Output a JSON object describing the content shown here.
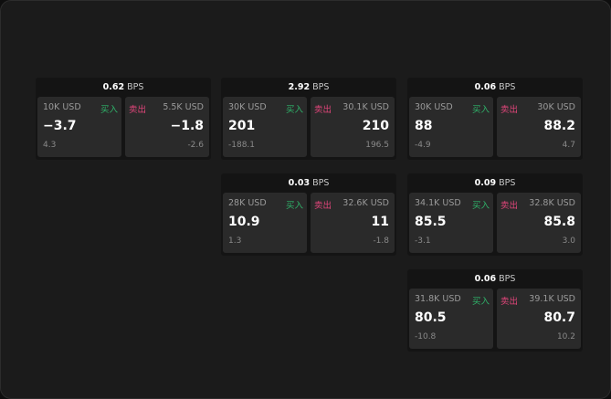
{
  "unit": "BPS",
  "buy_label": "买入",
  "sell_label": "卖出",
  "colors": {
    "buy": "#2fb36a",
    "sell": "#e0457a",
    "background": "#1b1b1b"
  },
  "cards": [
    {
      "spread": "0.62",
      "buy": {
        "size": "10K USD",
        "price": "−3.7",
        "change": "4.3"
      },
      "sell": {
        "size": "5.5K USD",
        "price": "−1.8",
        "change": "-2.6"
      }
    },
    {
      "spread": "2.92",
      "buy": {
        "size": "30K USD",
        "price": "201",
        "change": "-188.1"
      },
      "sell": {
        "size": "30.1K USD",
        "price": "210",
        "change": "196.5"
      }
    },
    {
      "spread": "0.06",
      "buy": {
        "size": "30K USD",
        "price": "88",
        "change": "-4.9"
      },
      "sell": {
        "size": "30K USD",
        "price": "88.2",
        "change": "4.7"
      }
    },
    {
      "spread": "0.03",
      "buy": {
        "size": "28K USD",
        "price": "10.9",
        "change": "1.3"
      },
      "sell": {
        "size": "32.6K USD",
        "price": "11",
        "change": "-1.8"
      }
    },
    {
      "spread": "0.09",
      "buy": {
        "size": "34.1K USD",
        "price": "85.5",
        "change": "-3.1"
      },
      "sell": {
        "size": "32.8K USD",
        "price": "85.8",
        "change": "3.0"
      }
    },
    {
      "spread": "0.06",
      "buy": {
        "size": "31.8K USD",
        "price": "80.5",
        "change": "-10.8"
      },
      "sell": {
        "size": "39.1K USD",
        "price": "80.7",
        "change": "10.2"
      }
    }
  ]
}
